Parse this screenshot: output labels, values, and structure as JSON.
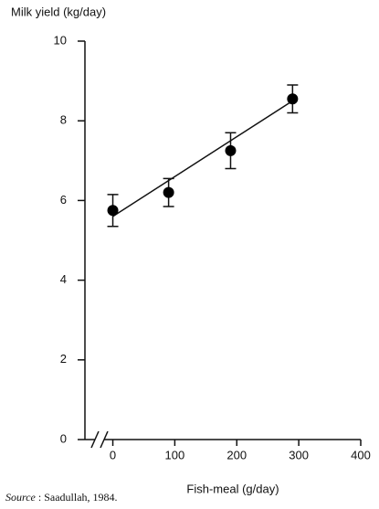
{
  "chart_data": {
    "type": "scatter",
    "ylabel": "Milk yield (kg/day)",
    "xlabel": "Fish-meal (g/day)",
    "source_label": "Source",
    "source_text": ": Saadullah, 1984.",
    "x": [
      0,
      90,
      190,
      290
    ],
    "values": [
      5.75,
      6.2,
      7.25,
      8.55
    ],
    "errors": [
      0.4,
      0.35,
      0.45,
      0.35
    ],
    "fit": {
      "x": [
        0,
        290
      ],
      "y": [
        5.6,
        8.5
      ]
    },
    "color": "#000000",
    "xlim": [
      -45,
      400
    ],
    "ylim": [
      0,
      10
    ],
    "xticks": [
      0,
      100,
      200,
      300,
      400
    ],
    "yticks": [
      0,
      2,
      4,
      6,
      8,
      10
    ]
  }
}
